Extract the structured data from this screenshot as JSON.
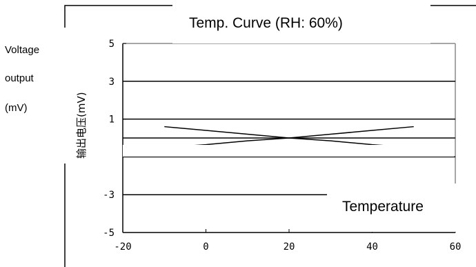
{
  "chart_data": {
    "type": "line",
    "title": "Temp. Curve (RH: 60%)",
    "xlabel": "Temperature",
    "ylabel_lines": [
      "Voltage",
      "output",
      "(mV)"
    ],
    "ylabel_original": "输出电压(mV)",
    "xlim": [
      -20,
      60
    ],
    "ylim": [
      -5,
      5
    ],
    "x_ticks": [
      -20,
      0,
      20,
      40,
      60
    ],
    "y_ticks": [
      5,
      3,
      1,
      -3,
      -5
    ],
    "h_gridlines": [
      3,
      1,
      0,
      -1,
      -3
    ],
    "series": [
      {
        "x": [
          -10,
          0,
          10,
          20,
          30,
          40,
          50
        ],
        "y": [
          0.6,
          0.4,
          0.2,
          0.0,
          0.2,
          0.4,
          0.6
        ]
      },
      {
        "x": [
          -10,
          0,
          10,
          20,
          30,
          40,
          50
        ],
        "y": [
          -0.5,
          -0.35,
          -0.15,
          0.0,
          -0.15,
          -0.35,
          -0.5
        ]
      }
    ],
    "grid": true
  }
}
